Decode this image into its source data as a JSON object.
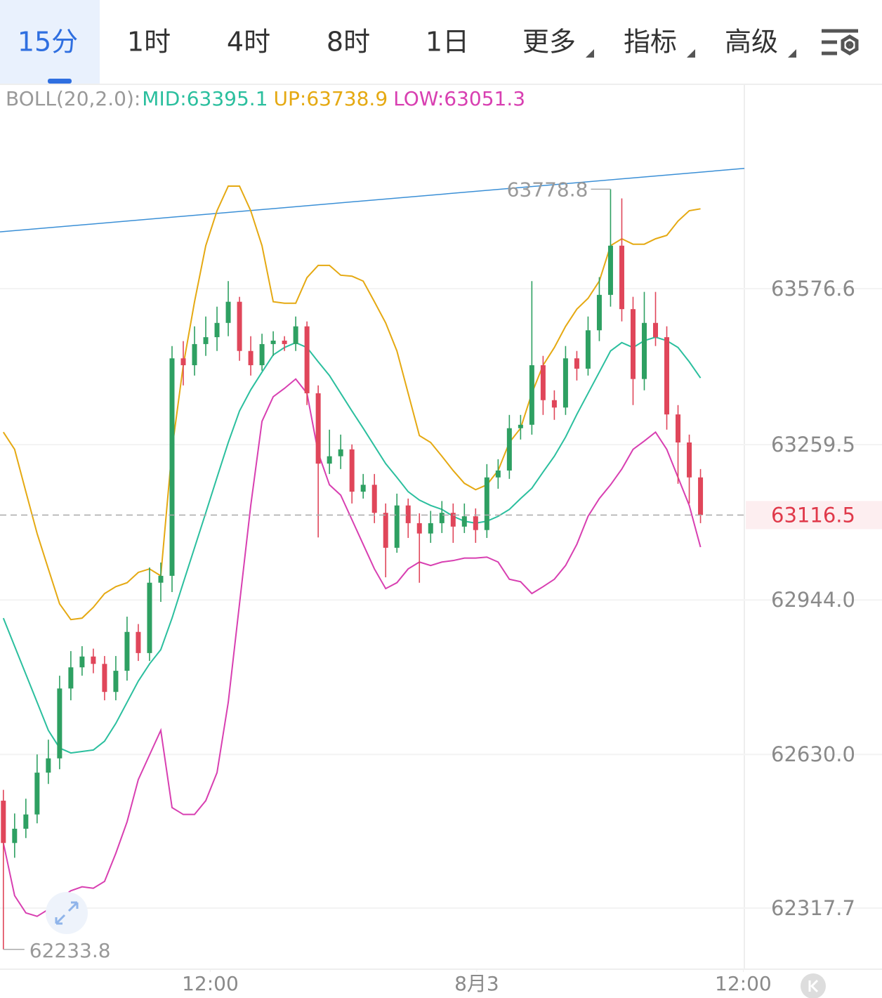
{
  "toolbar": {
    "tabs": [
      "15分",
      "1时",
      "4时",
      "8时",
      "1日",
      "更多",
      "指标",
      "高级"
    ],
    "selected": 0
  },
  "chart_data": {
    "type": "candlestick",
    "indicator": "BOLL(20,2.0):",
    "legend_separator": ":",
    "categories": [
      null,
      null,
      null,
      null,
      null,
      null,
      null,
      null,
      null,
      null,
      null,
      null,
      null,
      null,
      null,
      null,
      null,
      null,
      null,
      null,
      null,
      null,
      null,
      null,
      null,
      null,
      null,
      null,
      null,
      null,
      null,
      null,
      null,
      null,
      null,
      null,
      null,
      null,
      null,
      null,
      null,
      null,
      null,
      null,
      null,
      null,
      null,
      null,
      null,
      null,
      null,
      null,
      null,
      null,
      null,
      null,
      null,
      null,
      null,
      null,
      null,
      null,
      null
    ],
    "open": [
      62536,
      62450,
      62479,
      62508,
      62593,
      62622,
      62764,
      62807,
      62829,
      62814,
      62757,
      62800,
      62879,
      62836,
      62979,
      62993,
      63435,
      63421,
      63464,
      63478,
      63507,
      63550,
      63450,
      63421,
      63464,
      63471,
      63464,
      63500,
      63364,
      63221,
      63236,
      63250,
      63164,
      63178,
      63121,
      63050,
      63136,
      63100,
      63079,
      63100,
      63121,
      63093,
      63114,
      63086,
      63193,
      63207,
      63293,
      63300,
      63421,
      63350,
      63335,
      63435,
      63414,
      63492,
      63564,
      63664,
      63535,
      63393,
      63507,
      63478,
      63321,
      63264,
      63193
    ],
    "high": [
      62558,
      62510,
      62540,
      62630,
      62660,
      62790,
      62840,
      62850,
      62845,
      62830,
      62830,
      62910,
      62895,
      63010,
      63020,
      63460,
      63470,
      63500,
      63520,
      63540,
      63592,
      63560,
      63480,
      63485,
      63490,
      63480,
      63520,
      63510,
      63380,
      63290,
      63280,
      63260,
      63200,
      63200,
      63140,
      63160,
      63150,
      63120,
      63125,
      63145,
      63140,
      63140,
      63130,
      63220,
      63230,
      63320,
      63320,
      63592,
      63440,
      63370,
      63460,
      63450,
      63520,
      63600,
      63778.8,
      63760,
      63560,
      63570,
      63570,
      63500,
      63340,
      63280,
      63210
    ],
    "low": [
      62233.8,
      62420,
      62460,
      62490,
      62570,
      62600,
      62740,
      62790,
      62795,
      62740,
      62740,
      62780,
      62820,
      62820,
      62940,
      62960,
      63380,
      63400,
      63440,
      63450,
      63480,
      63430,
      63400,
      63410,
      63440,
      63450,
      63450,
      63340,
      63071,
      63200,
      63210,
      63140,
      63150,
      63100,
      62990,
      63040,
      63070,
      62979,
      63060,
      63080,
      63060,
      63080,
      63060,
      63070,
      63170,
      63190,
      63270,
      63280,
      63320,
      63310,
      63320,
      63390,
      63400,
      63470,
      63540,
      63510,
      63340,
      63370,
      63460,
      63290,
      63180,
      63140,
      63100
    ],
    "close": [
      62450,
      62479,
      62508,
      62593,
      62622,
      62764,
      62807,
      62829,
      62814,
      62757,
      62800,
      62879,
      62836,
      62979,
      62993,
      63435,
      63421,
      63464,
      63478,
      63507,
      63550,
      63450,
      63421,
      63464,
      63471,
      63464,
      63500,
      63364,
      63221,
      63236,
      63250,
      63164,
      63178,
      63121,
      63050,
      63136,
      63100,
      63079,
      63100,
      63121,
      63093,
      63114,
      63086,
      63193,
      63207,
      63293,
      63300,
      63421,
      63350,
      63335,
      63435,
      63414,
      63492,
      63564,
      63664,
      63535,
      63393,
      63507,
      63478,
      63321,
      63264,
      63193,
      63116.5
    ],
    "up_color": "#2ea062",
    "down_color": "#e0465a",
    "series": [
      {
        "name": "MID",
        "color": "#2bbf9e",
        "values": [
          62907,
          62850,
          62793,
          62736,
          62679,
          62643,
          62633,
          62636,
          62639,
          62657,
          62693,
          62736,
          62779,
          62814,
          62843,
          62907,
          62979,
          63050,
          63121,
          63193,
          63264,
          63328,
          63371,
          63407,
          63442,
          63457,
          63467,
          63457,
          63428,
          63400,
          63364,
          63328,
          63293,
          63257,
          63221,
          63193,
          63164,
          63147,
          63136,
          63128,
          63114,
          63104,
          63100,
          63104,
          63114,
          63128,
          63150,
          63171,
          63204,
          63236,
          63275,
          63321,
          63364,
          63407,
          63450,
          63467,
          63457,
          63471,
          63478,
          63471,
          63457,
          63428,
          63395.1
        ]
      },
      {
        "name": "UP",
        "color": "#e5a912",
        "values": [
          63285,
          63250,
          63164,
          63079,
          63007,
          62936,
          62904,
          62907,
          62929,
          62957,
          62971,
          62979,
          63000,
          63007,
          62993,
          63250,
          63421,
          63550,
          63664,
          63735,
          63785,
          63785,
          63735,
          63664,
          63550,
          63547,
          63547,
          63599,
          63624,
          63624,
          63604,
          63602,
          63592,
          63550,
          63507,
          63450,
          63364,
          63278,
          63264,
          63236,
          63207,
          63181,
          63168,
          63178,
          63207,
          63264,
          63293,
          63364,
          63421,
          63457,
          63500,
          63535,
          63557,
          63592,
          63664,
          63678,
          63667,
          63667,
          63678,
          63685,
          63714,
          63735,
          63738.9
        ]
      },
      {
        "name": "LOW",
        "color": "#d83fb1",
        "values": [
          62450,
          62343,
          62308,
          62301,
          62315,
          62336,
          62353,
          62361,
          62358,
          62372,
          62429,
          62493,
          62579,
          62629,
          62679,
          62522,
          62508,
          62508,
          62536,
          62593,
          62736,
          62936,
          63136,
          63307,
          63357,
          63374,
          63393,
          63364,
          63243,
          63178,
          63157,
          63107,
          63057,
          63007,
          62967,
          62979,
          63007,
          63021,
          63014,
          63021,
          63024,
          63029,
          63029,
          63031,
          63021,
          62986,
          62981,
          62957,
          62971,
          62986,
          63014,
          63057,
          63114,
          63150,
          63178,
          63210,
          63250,
          63267,
          63285,
          63250,
          63193,
          63136,
          63051.3
        ]
      }
    ],
    "ylim": [
      62193.5,
      63992
    ],
    "yticks": [
      62317.7,
      {
        "value": 62630.0,
        "label": "62630.0"
      },
      {
        "value": 62944.0,
        "label": "62944.0"
      },
      63259.5,
      63576.6
    ],
    "xlim": [
      -0.3,
      65.9
    ],
    "xticks": [
      {
        "value": 18.4,
        "label": "12:00"
      },
      {
        "value": 42.1,
        "label": "8月3"
      },
      {
        "value": 65.8,
        "label": "12:00"
      }
    ],
    "grid": true,
    "current_price_color": "#e0394a",
    "trendline": {
      "color": "#3a8fd6",
      "x": [
        -0.3,
        65.9
      ],
      "y": [
        63692,
        63821
      ]
    }
  }
}
